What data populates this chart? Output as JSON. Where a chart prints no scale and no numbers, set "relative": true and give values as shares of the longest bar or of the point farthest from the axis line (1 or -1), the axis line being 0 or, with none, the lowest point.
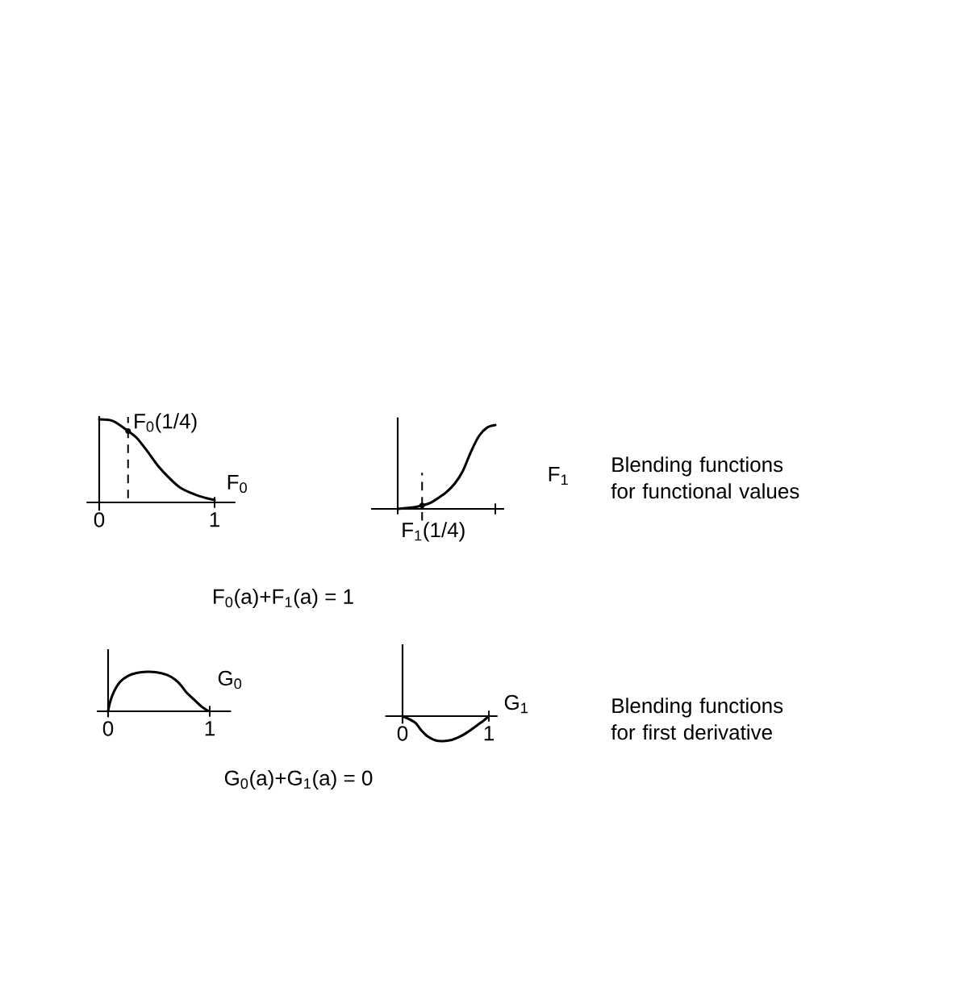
{
  "chart_data": [
    {
      "type": "line",
      "relative": true,
      "xlim": [
        -0.11,
        1.18
      ],
      "xticks": [
        0,
        1
      ],
      "series": [
        {
          "name": "F$_{0}$",
          "color": "#000000",
          "x": [
            0,
            0.12,
            0.25,
            0.33,
            0.42,
            0.51,
            0.61,
            0.7,
            0.82,
            0.93,
            1
          ],
          "values": [
            1,
            0.98,
            0.86,
            0.77,
            0.61,
            0.44,
            0.29,
            0.18,
            0.1,
            0.05,
            0.03
          ]
        }
      ],
      "ref_lines": [
        {
          "axis": "x",
          "value": 0.25,
          "line_style": "dashed"
        }
      ],
      "annotations": [
        {
          "text": "F$_{0}$(1/4)",
          "x": 0.25,
          "y": 0.86
        },
        "F$_{0}$(a)+F$_{1}$(a) = 1"
      ]
    },
    {
      "type": "line",
      "relative": true,
      "categories": [
        null,
        null,
        null,
        null,
        null,
        null,
        null,
        null,
        null,
        null,
        null,
        null,
        null
      ],
      "series": [
        {
          "name": "F$_{1}$",
          "color": "#000000",
          "values": [
            0,
            0.01,
            0.02,
            0.04,
            0.07,
            0.13,
            0.2,
            0.3,
            0.45,
            0.68,
            0.87,
            0.97,
            1
          ]
        }
      ],
      "annotations": [
        {
          "text": "F$_{1}$(1/4)",
          "y": 0.04
        },
        "Blending functions for functional values"
      ]
    },
    {
      "type": "line",
      "relative": true,
      "xlim": [
        -0.11,
        1.21
      ],
      "xticks": [
        0,
        1
      ],
      "series": [
        {
          "name": "G$_{0}$",
          "color": "#000000",
          "x": [
            0,
            0.02,
            0.06,
            0.12,
            0.2,
            0.28,
            0.38,
            0.47,
            0.58,
            0.66,
            0.72,
            0.77,
            0.84,
            0.91,
            0.97,
            1
          ],
          "values": [
            0,
            0.24,
            0.51,
            0.75,
            0.9,
            0.97,
            1,
            0.99,
            0.92,
            0.8,
            0.65,
            0.48,
            0.31,
            0.14,
            0.03,
            0
          ]
        }
      ],
      "annotations": [
        "G$_{0}$(a)+G$_{1}$(a) = 0"
      ]
    },
    {
      "type": "line",
      "relative": true,
      "xlim": [
        -0.2,
        1.1
      ],
      "xticks": [
        0,
        1
      ],
      "series": [
        {
          "name": "G$_{1}$",
          "color": "#000000",
          "x": [
            0,
            0.07,
            0.15,
            0.21,
            0.29,
            0.38,
            0.47,
            0.57,
            0.66,
            0.75,
            0.84,
            0.94,
            1
          ],
          "values": [
            0,
            -0.11,
            -0.27,
            -0.54,
            -0.81,
            -0.97,
            -1,
            -0.95,
            -0.83,
            -0.65,
            -0.43,
            -0.18,
            0
          ]
        }
      ],
      "annotations": [
        "Blending functions for first derivative"
      ]
    }
  ]
}
